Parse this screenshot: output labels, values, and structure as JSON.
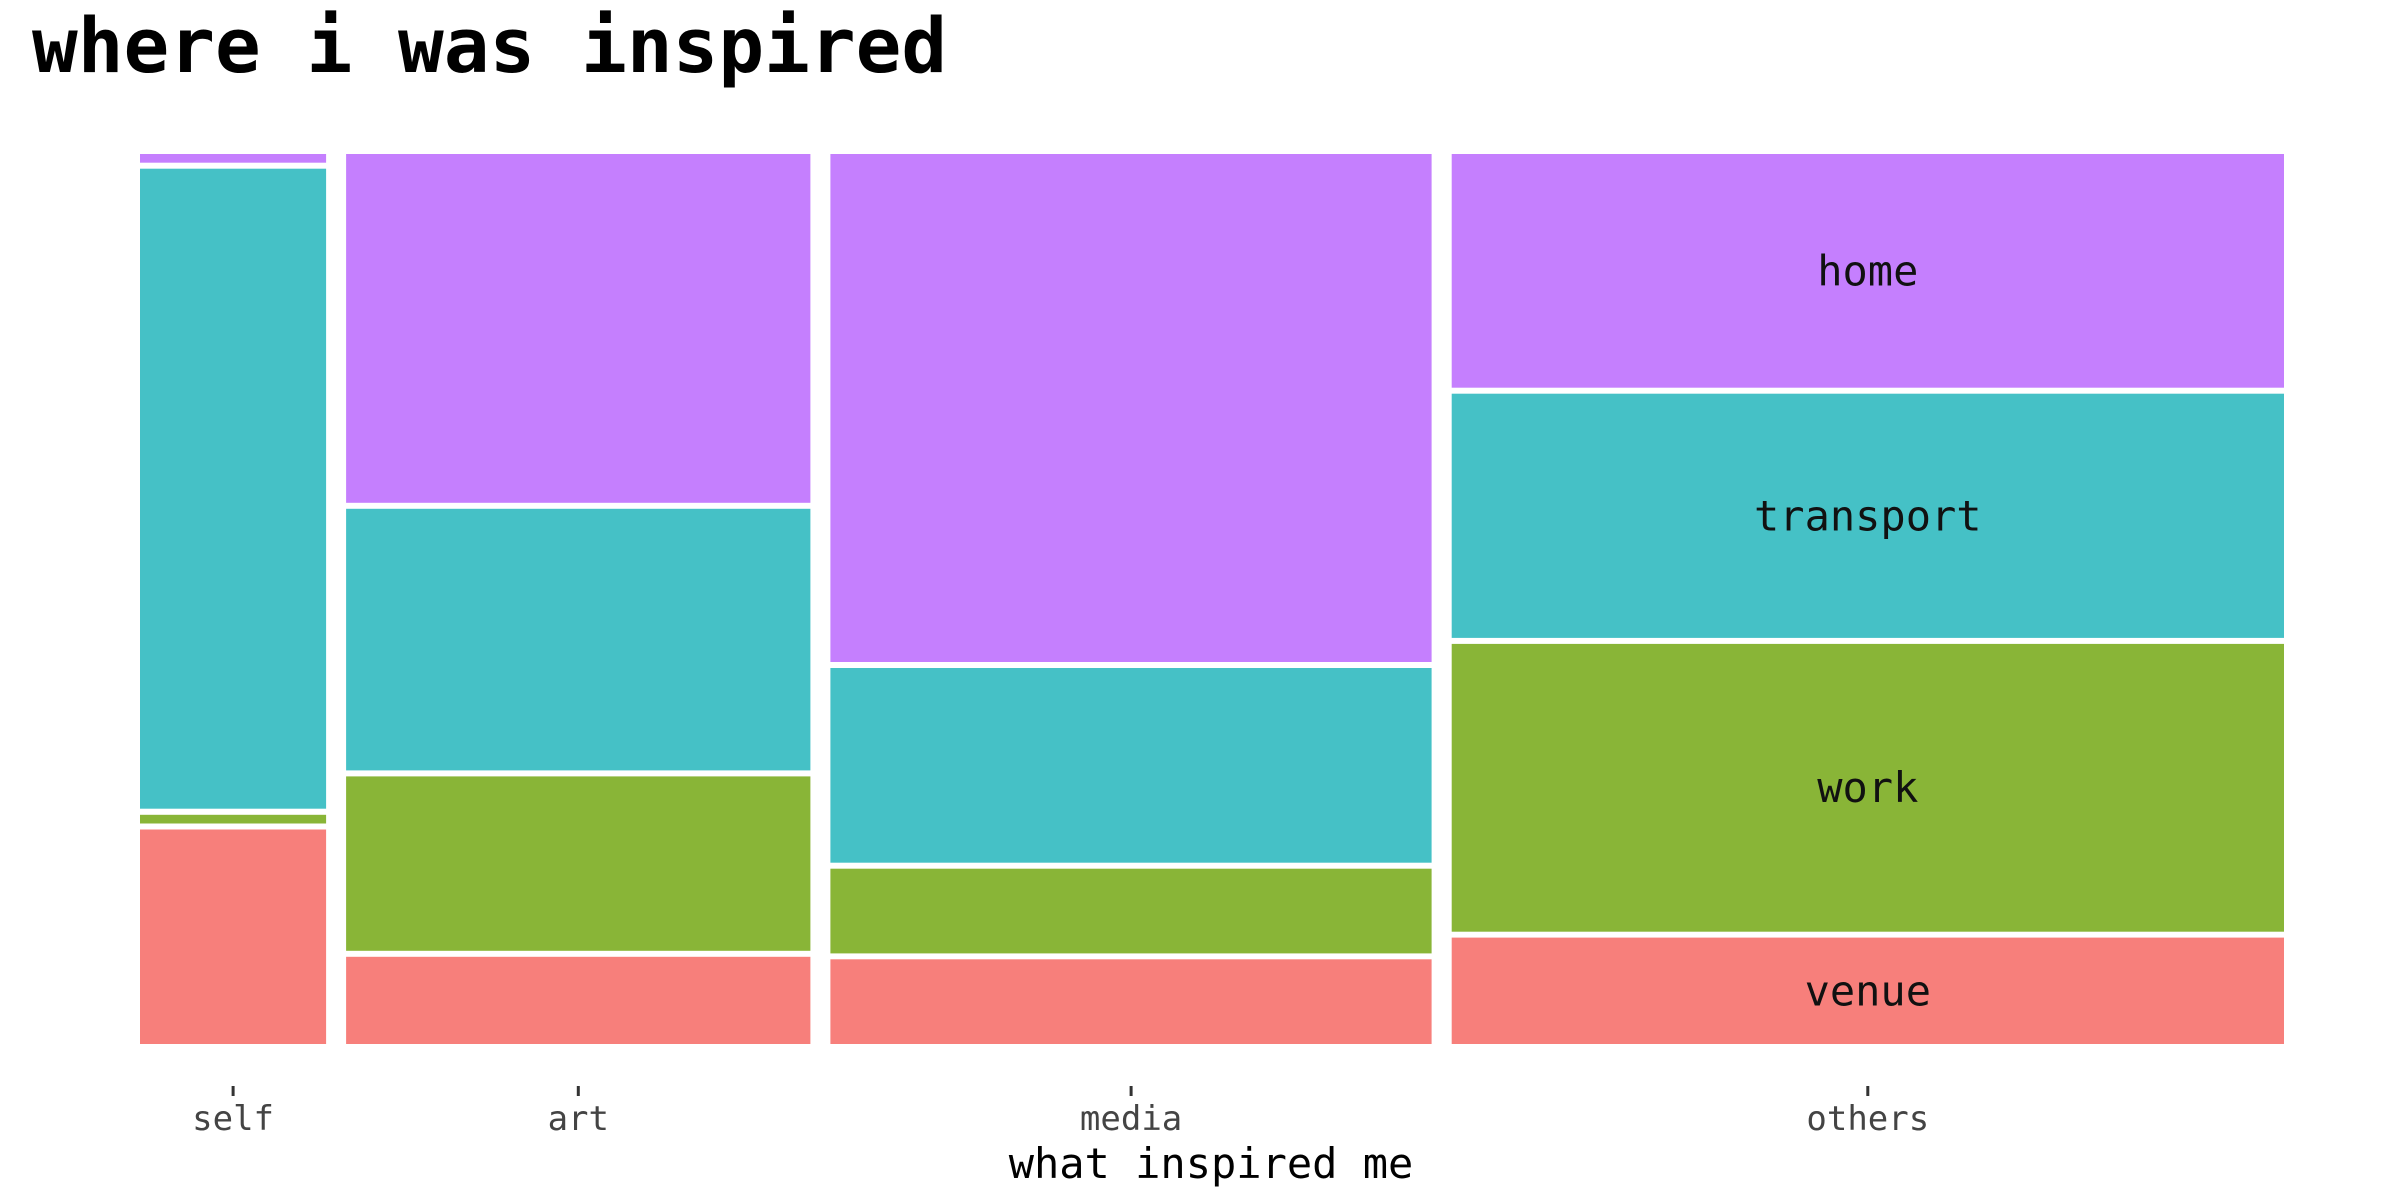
{
  "chart_data": {
    "type": "mosaic",
    "title": "where i was inspired",
    "xlabel": "what inspired me",
    "ylabel": "",
    "categories": [
      "self",
      "art",
      "media",
      "others"
    ],
    "widths": [
      0.087,
      0.217,
      0.281,
      0.389
    ],
    "segment_order": [
      "venue",
      "work",
      "transport",
      "home"
    ],
    "series": [
      {
        "name": "venue",
        "color": "#F77F7B",
        "values": [
          0.246,
          0.1,
          0.1,
          0.122
        ]
      },
      {
        "name": "work",
        "color": "#89B537",
        "values": [
          0.01,
          0.2,
          0.1,
          0.33
        ]
      },
      {
        "name": "transport",
        "color": "#45C1C6",
        "values": [
          0.734,
          0.3,
          0.23,
          0.28
        ]
      },
      {
        "name": "home",
        "color": "#C57FFE",
        "values": [
          0.01,
          0.4,
          0.6,
          0.268
        ]
      }
    ],
    "segment_labels_on": "others",
    "legend": "none",
    "grid": false
  }
}
